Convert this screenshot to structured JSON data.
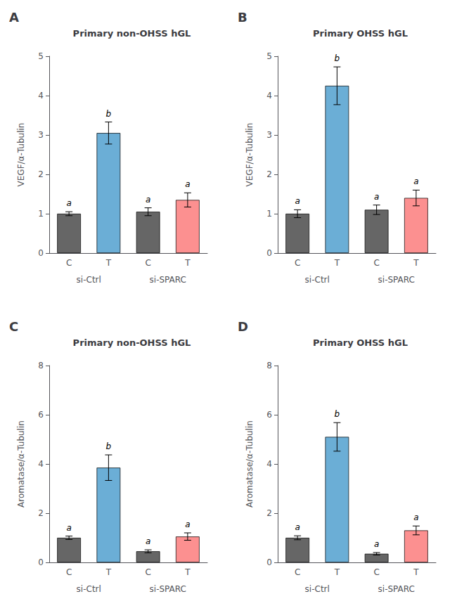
{
  "chart_data": [
    {
      "type": "bar",
      "panel_label": "A",
      "title": "Primary non-OHSS hGL",
      "categories": [
        "C",
        "T",
        "C",
        "T"
      ],
      "group_labels": [
        "si-Ctrl",
        "si-SPARC"
      ],
      "ylabel": "VEGF/α-Tubulin",
      "values": [
        1.0,
        3.05,
        1.05,
        1.35
      ],
      "errors": [
        0.05,
        0.28,
        0.1,
        0.18
      ],
      "colors": [
        "#666666",
        "#6baed6",
        "#666666",
        "#fc9090"
      ],
      "annotations": [
        "a",
        "b",
        "a",
        "a"
      ],
      "ylim": [
        0,
        5
      ],
      "yticks": [
        0,
        1,
        2,
        3,
        4,
        5
      ],
      "grid": false
    },
    {
      "type": "bar",
      "panel_label": "B",
      "title": "Primary OHSS hGL",
      "categories": [
        "C",
        "T",
        "C",
        "T"
      ],
      "group_labels": [
        "si-Ctrl",
        "si-SPARC"
      ],
      "ylabel": "VEGF/α-Tubulin",
      "values": [
        1.0,
        4.25,
        1.1,
        1.4
      ],
      "errors": [
        0.1,
        0.48,
        0.12,
        0.2
      ],
      "colors": [
        "#666666",
        "#6baed6",
        "#666666",
        "#fc9090"
      ],
      "annotations": [
        "a",
        "b",
        "a",
        "a"
      ],
      "ylim": [
        0,
        5
      ],
      "yticks": [
        0,
        1,
        2,
        3,
        4,
        5
      ],
      "grid": false
    },
    {
      "type": "bar",
      "panel_label": "C",
      "title": "Primary non-OHSS hGL",
      "categories": [
        "C",
        "T",
        "C",
        "T"
      ],
      "group_labels": [
        "si-Ctrl",
        "si-SPARC"
      ],
      "ylabel": "Aromatase/α-Tubulin",
      "values": [
        1.0,
        3.85,
        0.45,
        1.05
      ],
      "errors": [
        0.07,
        0.52,
        0.06,
        0.15
      ],
      "colors": [
        "#666666",
        "#6baed6",
        "#666666",
        "#fc9090"
      ],
      "annotations": [
        "a",
        "b",
        "a",
        "a"
      ],
      "ylim": [
        0,
        8
      ],
      "yticks": [
        0,
        2,
        4,
        6,
        8
      ],
      "grid": false
    },
    {
      "type": "bar",
      "panel_label": "D",
      "title": "Primary OHSS hGL",
      "categories": [
        "C",
        "T",
        "C",
        "T"
      ],
      "group_labels": [
        "si-Ctrl",
        "si-SPARC"
      ],
      "ylabel": "Aromatase/α-Tubulin",
      "values": [
        1.0,
        5.1,
        0.35,
        1.3
      ],
      "errors": [
        0.08,
        0.58,
        0.05,
        0.18
      ],
      "colors": [
        "#666666",
        "#6baed6",
        "#666666",
        "#fc9090"
      ],
      "annotations": [
        "a",
        "b",
        "a",
        "a"
      ],
      "ylim": [
        0,
        8
      ],
      "yticks": [
        0,
        2,
        4,
        6,
        8
      ],
      "grid": false
    }
  ]
}
